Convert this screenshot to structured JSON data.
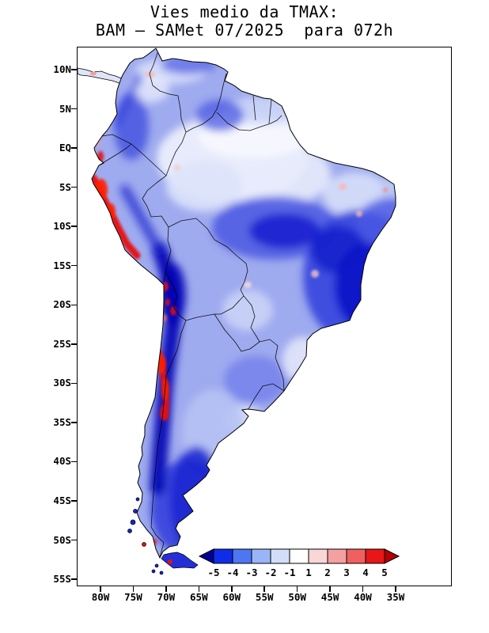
{
  "title": {
    "line1": "Vies medio da TMAX:",
    "line2": "BAM – SAMet 07/2025  para 072h"
  },
  "axes": {
    "lat_ticks": [
      "10N",
      "5N",
      "EQ",
      "5S",
      "10S",
      "15S",
      "20S",
      "25S",
      "30S",
      "35S",
      "40S",
      "45S",
      "50S",
      "55S"
    ],
    "lon_ticks": [
      "80W",
      "75W",
      "70W",
      "65W",
      "60W",
      "55W",
      "50W",
      "45W",
      "40W",
      "35W"
    ]
  },
  "colorbar": {
    "labels": [
      "-5",
      "-4",
      "-3",
      "-2",
      "-1",
      "1",
      "2",
      "3",
      "4",
      "5"
    ],
    "colors": [
      "#000096",
      "#0f2de8",
      "#4d76f2",
      "#9ab5f7",
      "#d2def9",
      "#ffffff",
      "#f9d7d7",
      "#f5a0a0",
      "#f06060",
      "#e81616",
      "#b40000"
    ]
  }
}
